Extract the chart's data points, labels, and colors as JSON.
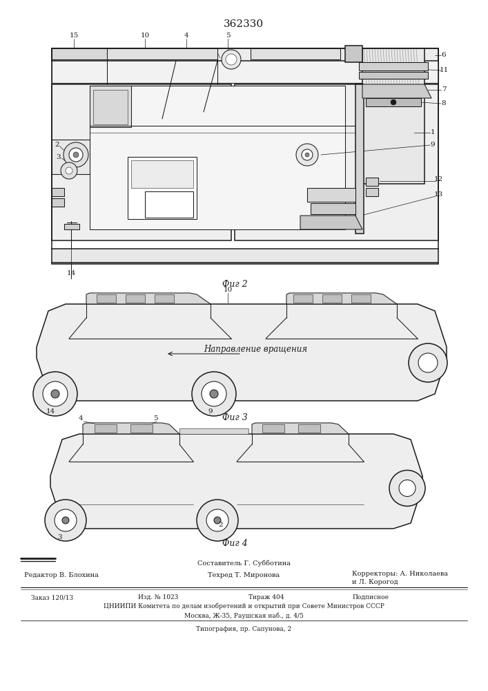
{
  "patent_number": "362330",
  "background_color": "#ffffff",
  "fig_width": 7.07,
  "fig_height": 10.0,
  "dpi": 100,
  "title_text": "362330",
  "title_fontsize": 11,
  "fig2_caption": "Фиг 2",
  "fig3_caption": "Фиг 3",
  "fig4_caption": "Фиг 4",
  "staff_compose": "Составитель Г. Субботина",
  "staff_editor": "Редактор В. Блохина",
  "staff_tech": "Техред Т. Миронова",
  "staff_correct1": "Корректоры: А. Николаева",
  "staff_correct2": "и Л. Корогод",
  "info_line1_col1": "Заказ 120/13",
  "info_line1_col2": "Изд. № 1023",
  "info_line1_col3": "Тираж 404",
  "info_line1_col4": "Подписное",
  "info_line2": "ЦНИИПИ Комитета по делам изобретений и открытий при Совете Министров СССР",
  "info_line3": "Москва, Ж-35, Раушская наб., д. 4/5",
  "info_line4": "Типография, пр. Сапунова, 2",
  "dc": "#1a1a1a",
  "lw_thin": 0.4,
  "lw_med": 0.75,
  "lw_thick": 1.1,
  "label_fs": 7.5,
  "caption_fs": 9,
  "footer_fs": 7,
  "info_fs": 6.5
}
